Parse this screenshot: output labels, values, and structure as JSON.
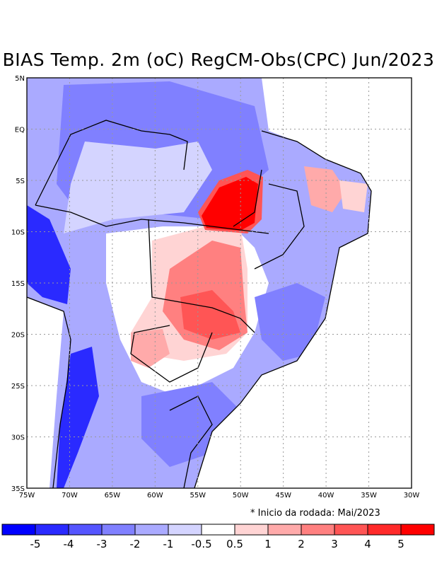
{
  "title": "BIAS Temp. 2m (oC) RegCM-Obs(CPC) Jun/2023",
  "note": "* Inicio da rodada: Mai/2023",
  "map": {
    "lon_range": [
      -75,
      -30
    ],
    "lat_range": [
      -35,
      5
    ],
    "lat_labels": [
      "5N",
      "EQ",
      "5S",
      "10S",
      "15S",
      "20S",
      "25S",
      "30S",
      "35S"
    ],
    "lat_values": [
      5,
      0,
      -5,
      -10,
      -15,
      -20,
      -25,
      -30,
      -35
    ],
    "lon_labels": [
      "75W",
      "70W",
      "65W",
      "60W",
      "55W",
      "50W",
      "45W",
      "40W",
      "35W",
      "30W"
    ],
    "lon_values": [
      -75,
      -70,
      -65,
      -60,
      -55,
      -50,
      -45,
      -40,
      -35,
      -30
    ]
  },
  "colorbar": {
    "colors": [
      "#0000ff",
      "#2a2aff",
      "#5555ff",
      "#8080ff",
      "#aaaaff",
      "#d4d4ff",
      "#ffffff",
      "#ffd4d4",
      "#ffaaaa",
      "#ff8080",
      "#ff5555",
      "#ff2a2a",
      "#ff0000"
    ],
    "labels": [
      "-5",
      "-4",
      "-3",
      "-2",
      "-1",
      "-0.5",
      "0.5",
      "1",
      "2",
      "3",
      "4",
      "5"
    ]
  }
}
